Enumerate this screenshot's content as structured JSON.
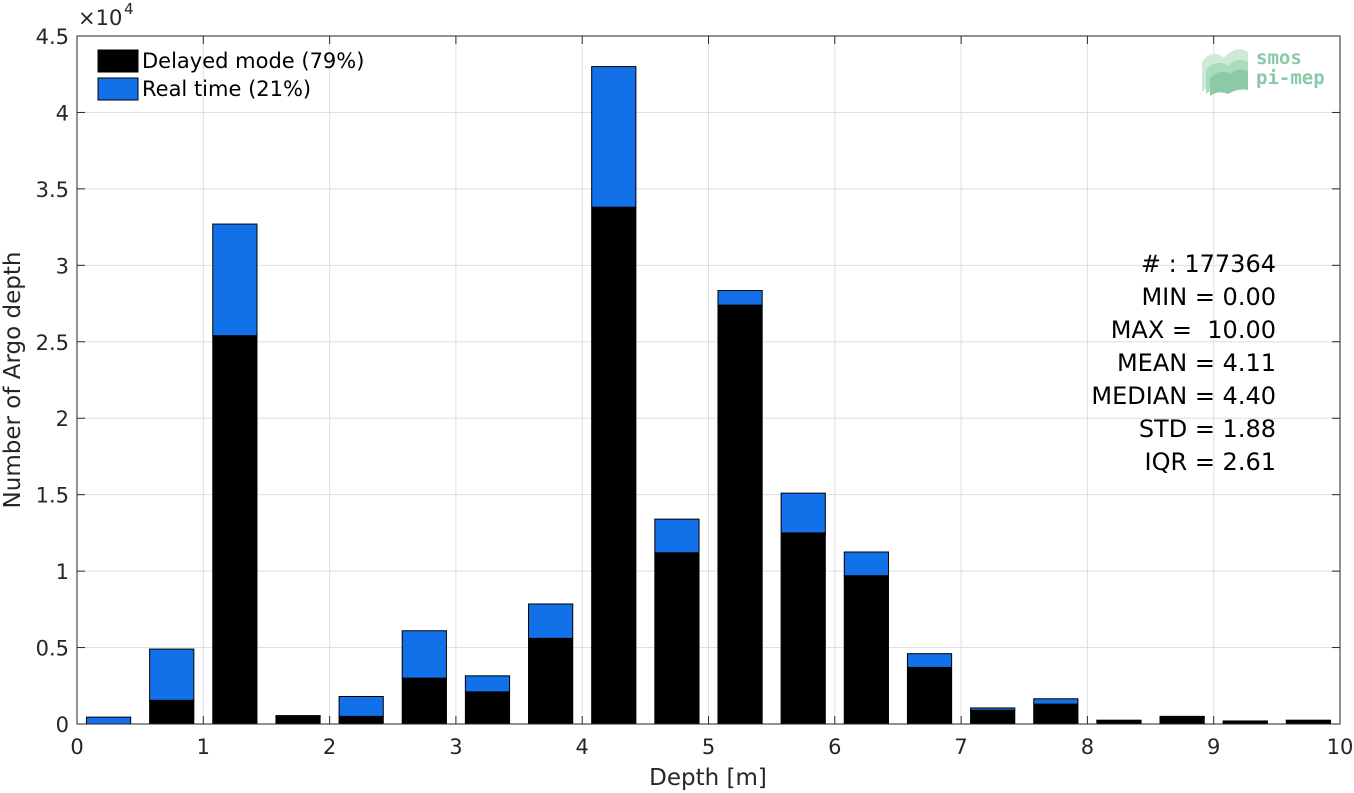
{
  "chart_data": {
    "type": "bar",
    "stacked": true,
    "xlabel": "Depth [m]",
    "ylabel": "Number of Argo depth",
    "xlim": [
      0,
      10
    ],
    "ylim": [
      0,
      45000
    ],
    "y_exponent_label": "×10",
    "y_exponent_power": "4",
    "x_ticks": [
      0,
      1,
      2,
      3,
      4,
      5,
      6,
      7,
      8,
      9,
      10
    ],
    "y_ticks": [
      0,
      5000,
      10000,
      15000,
      20000,
      25000,
      30000,
      35000,
      40000,
      45000
    ],
    "y_tick_labels": [
      "0",
      "0.5",
      "1",
      "1.5",
      "2",
      "2.5",
      "3",
      "3.5",
      "4",
      "4.5"
    ],
    "grid": true,
    "legend_position": "top-left",
    "bar_width": 0.35,
    "x": [
      0.25,
      0.75,
      1.25,
      1.75,
      2.25,
      2.75,
      3.25,
      3.75,
      4.25,
      4.75,
      5.25,
      5.75,
      6.25,
      6.75,
      7.25,
      7.75,
      8.25,
      8.75,
      9.25,
      9.75
    ],
    "series": [
      {
        "name": "Delayed mode (79%)",
        "color": "#000000",
        "values": [
          0,
          1550,
          25400,
          500,
          500,
          3000,
          2100,
          5600,
          33800,
          11200,
          27400,
          12500,
          9700,
          3700,
          900,
          1300,
          200,
          450,
          150,
          200
        ]
      },
      {
        "name": "Real time (21%)",
        "color": "#1270e8",
        "values": [
          450,
          3350,
          7300,
          50,
          1300,
          3100,
          1050,
          2250,
          9200,
          2200,
          950,
          2600,
          1550,
          900,
          150,
          350,
          50,
          50,
          50,
          50
        ]
      }
    ],
    "annotations": [
      "# : 177364",
      "MIN = 0.00",
      "MAX =  10.00",
      "MEAN = 4.11",
      "MEDIAN = 4.40",
      "STD = 1.88",
      "IQR = 2.61"
    ]
  },
  "logo": {
    "line1": "smos",
    "line2": "pi-mep"
  }
}
